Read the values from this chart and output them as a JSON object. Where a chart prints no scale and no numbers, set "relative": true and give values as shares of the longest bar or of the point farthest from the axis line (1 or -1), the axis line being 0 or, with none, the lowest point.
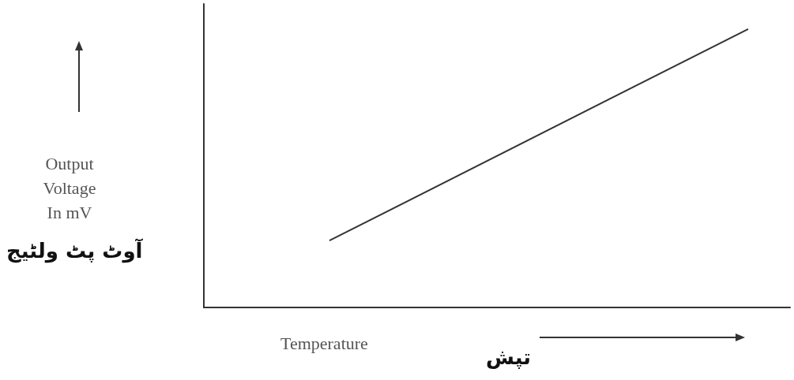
{
  "chart_data": {
    "type": "line",
    "relative": true,
    "xlabel": "Temperature",
    "annotations": [
      "Output\nVoltage\nIn mV",
      "آوٹ پٹ ولٹیج",
      "تپش"
    ],
    "categories": [
      null,
      null,
      null,
      null,
      null,
      null,
      null,
      null,
      null,
      null,
      null,
      null,
      null,
      null,
      null
    ],
    "series": [
      {
        "color": "#333333",
        "values": [
          null,
          null,
          null,
          0.24,
          null,
          null,
          null,
          null,
          null,
          null,
          null,
          null,
          null,
          1,
          null
        ]
      }
    ]
  }
}
